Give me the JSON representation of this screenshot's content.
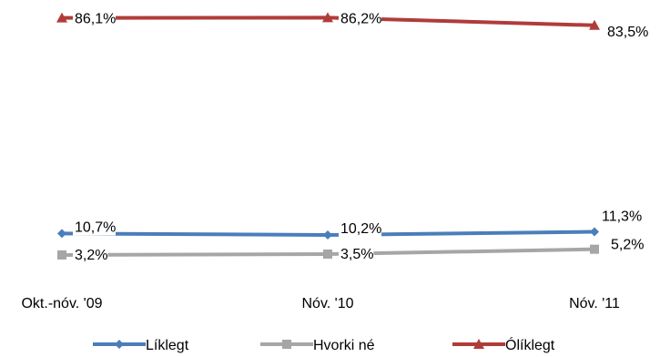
{
  "chart_data": {
    "type": "line",
    "title": "",
    "xlabel": "",
    "ylabel": "",
    "ylim": [
      0,
      100
    ],
    "grid": false,
    "legend_position": "bottom",
    "categories": [
      "Okt.-nóv. '09",
      "Nóv. '10",
      "Nóv. '11"
    ],
    "series": [
      {
        "name": "Líklegt",
        "values": [
          10.7,
          10.2,
          11.3
        ],
        "labels": [
          "10,7%",
          "10,2%",
          "11,3%"
        ],
        "color": "#4a7ebb",
        "marker": "diamond"
      },
      {
        "name": "Hvorki né",
        "values": [
          3.2,
          3.5,
          5.2
        ],
        "labels": [
          "3,2%",
          "3,5%",
          "5,2%"
        ],
        "color": "#a6a6a6",
        "marker": "square"
      },
      {
        "name": "Ólíklegt",
        "values": [
          86.1,
          86.2,
          83.5
        ],
        "labels": [
          "86,1%",
          "86,2%",
          "83,5%"
        ],
        "color": "#b03c3a",
        "marker": "triangle"
      }
    ]
  }
}
